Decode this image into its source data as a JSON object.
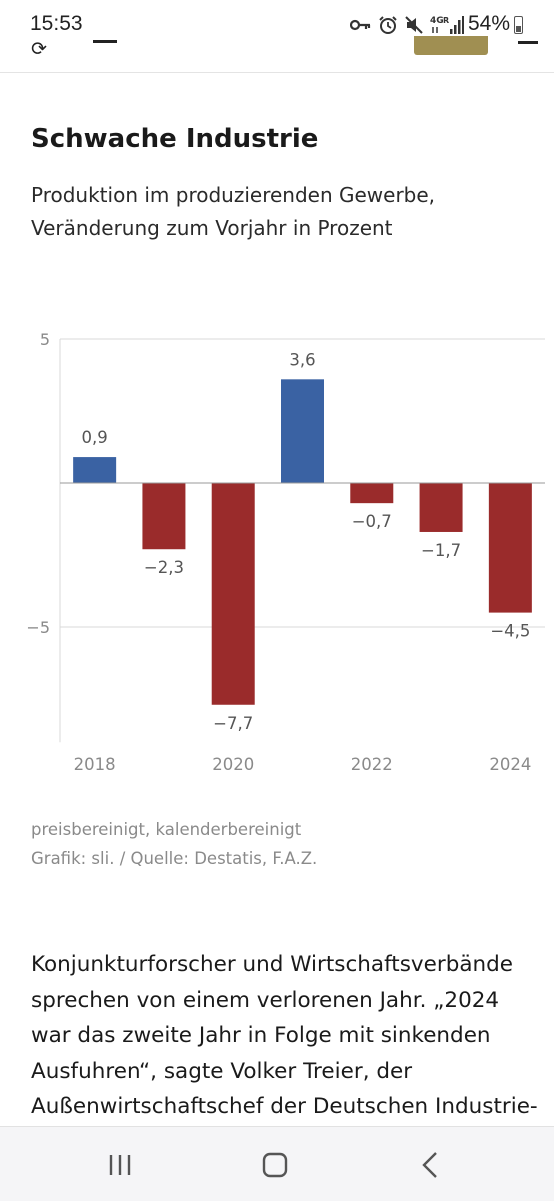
{
  "status_bar": {
    "time": "15:53",
    "battery": "54%",
    "icons": [
      "vpn-key-icon",
      "alarm-icon",
      "mute-icon",
      "4g-signal-icon",
      "battery-icon"
    ]
  },
  "chart_data": {
    "type": "bar",
    "title": "Schwache Industrie",
    "subtitle": "Produktion im produzierenden Gewerbe, Veränderung zum Vorjahr in Prozent",
    "x": [
      2018,
      2019,
      2020,
      2021,
      2022,
      2023,
      2024
    ],
    "values": [
      0.9,
      -2.3,
      -7.7,
      3.6,
      -0.7,
      -1.7,
      -4.5
    ],
    "data_labels": [
      "0,9",
      "−2,3",
      "−7,7",
      "3,6",
      "−0,7",
      "−1,7",
      "−4,5"
    ],
    "x_tick_labels": [
      "2018",
      "2020",
      "2022",
      "2024"
    ],
    "y_ticks": [
      5,
      -5
    ],
    "y_tick_labels": [
      "5",
      "−5"
    ],
    "ylim": [
      -9,
      5.5
    ],
    "grid": true,
    "colors": {
      "positive": "#3a62a3",
      "negative": "#9a2b2b"
    },
    "note": "preisbereinigt, kalenderbereinigt",
    "source": "Grafik: sli. / Quelle: Destatis, F.A.Z."
  },
  "article": {
    "text": "Konjunkturforscher und Wirtschaftsverbände sprechen von einem verlorenen Jahr. „2024 war das zweite Jahr in Folge mit sinkenden Ausfuhren“, sagte Volker Treier, der Außenwirtschaftschef der Deutschen Industrie-"
  },
  "nav_bar": {
    "buttons": [
      "recent-apps-icon",
      "home-icon",
      "back-icon"
    ]
  }
}
